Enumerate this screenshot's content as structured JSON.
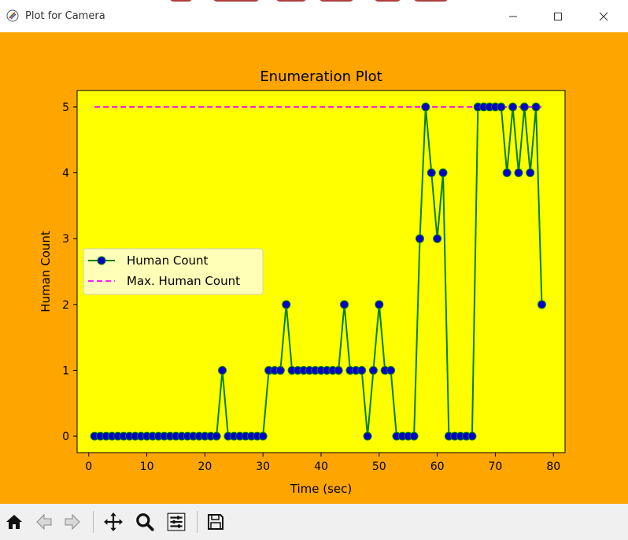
{
  "window": {
    "title": "Plot for Camera"
  },
  "toolbar": {
    "buttons": [
      "home-icon",
      "back-arrow-icon",
      "forward-arrow-icon",
      "pan-icon",
      "zoom-icon",
      "configure-subplots-icon",
      "save-icon"
    ]
  },
  "colors": {
    "figure_bg": "#ffa500",
    "axes_bg": "#ffff00",
    "line": "#008000",
    "marker": "#0000cd",
    "max_line": "#ff00ff",
    "legend_bg": "#ffffcc"
  },
  "chart_data": {
    "type": "line",
    "title": "Enumeration Plot",
    "xlabel": "Time (sec)",
    "ylabel": "Human Count",
    "xlim": [
      -2,
      82
    ],
    "ylim": [
      -0.25,
      5.25
    ],
    "xticks": [
      0,
      10,
      20,
      30,
      40,
      50,
      60,
      70,
      80
    ],
    "yticks": [
      0,
      1,
      2,
      3,
      4,
      5
    ],
    "grid": false,
    "legend_position": "center-left",
    "series": [
      {
        "name": "Human Count",
        "style": "line-with-markers",
        "x": [
          1,
          2,
          3,
          4,
          5,
          6,
          7,
          8,
          9,
          10,
          11,
          12,
          13,
          14,
          15,
          16,
          17,
          18,
          19,
          20,
          21,
          22,
          23,
          24,
          25,
          26,
          27,
          28,
          29,
          30,
          31,
          32,
          33,
          34,
          35,
          36,
          37,
          38,
          39,
          40,
          41,
          42,
          43,
          44,
          45,
          46,
          47,
          48,
          49,
          50,
          51,
          52,
          53,
          54,
          55,
          56,
          57,
          58,
          59,
          60,
          61,
          62,
          63,
          64,
          65,
          66,
          67,
          68,
          69,
          70,
          71,
          72,
          73,
          74,
          75,
          76,
          77,
          78
        ],
        "y": [
          0,
          0,
          0,
          0,
          0,
          0,
          0,
          0,
          0,
          0,
          0,
          0,
          0,
          0,
          0,
          0,
          0,
          0,
          0,
          0,
          0,
          0,
          1,
          0,
          0,
          0,
          0,
          0,
          0,
          0,
          1,
          1,
          1,
          2,
          1,
          1,
          1,
          1,
          1,
          1,
          1,
          1,
          1,
          2,
          1,
          1,
          1,
          0,
          1,
          2,
          1,
          1,
          0,
          0,
          0,
          0,
          3,
          5,
          4,
          3,
          4,
          0,
          0,
          0,
          0,
          0,
          5,
          5,
          5,
          5,
          5,
          4,
          5,
          4,
          5,
          4,
          5,
          2
        ]
      },
      {
        "name": "Max. Human Count",
        "style": "dashed",
        "x": [
          1,
          78
        ],
        "y": [
          5,
          5
        ]
      }
    ]
  }
}
